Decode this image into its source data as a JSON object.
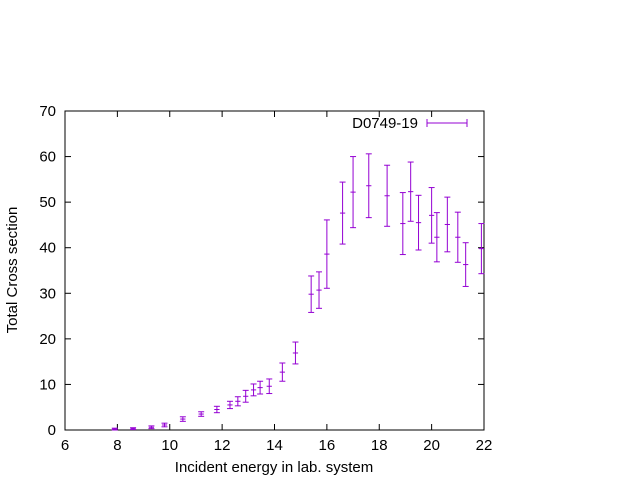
{
  "chart_data": {
    "type": "scatter",
    "title": "",
    "xlabel": "Incident energy in lab. system",
    "ylabel": "Total Cross section",
    "xlim": [
      6,
      22
    ],
    "ylim": [
      0,
      70
    ],
    "xticks": [
      6,
      8,
      10,
      12,
      14,
      16,
      18,
      20,
      22
    ],
    "yticks": [
      0,
      10,
      20,
      30,
      40,
      50,
      60,
      70
    ],
    "grid": false,
    "legend_position": "top-right",
    "series": [
      {
        "name": "D0749-19",
        "color": "#9400d3",
        "marker": "errorbar",
        "points": [
          {
            "x": 7.9,
            "y": 0.2,
            "err": 0.2,
            "xerr": 0.1
          },
          {
            "x": 8.6,
            "y": 0.3,
            "err": 0.2,
            "xerr": 0.1
          },
          {
            "x": 9.3,
            "y": 0.6,
            "err": 0.3,
            "xerr": 0.1
          },
          {
            "x": 9.8,
            "y": 1.1,
            "err": 0.4,
            "xerr": 0.1
          },
          {
            "x": 10.5,
            "y": 2.4,
            "err": 0.5,
            "xerr": 0.1
          },
          {
            "x": 11.2,
            "y": 3.5,
            "err": 0.5,
            "xerr": 0.1
          },
          {
            "x": 11.8,
            "y": 4.5,
            "err": 0.7,
            "xerr": 0.1
          },
          {
            "x": 12.3,
            "y": 5.5,
            "err": 0.8,
            "xerr": 0.1
          },
          {
            "x": 12.6,
            "y": 6.3,
            "err": 1.0,
            "xerr": 0.1
          },
          {
            "x": 12.9,
            "y": 7.4,
            "err": 1.3,
            "xerr": 0.1
          },
          {
            "x": 13.2,
            "y": 8.8,
            "err": 1.3,
            "xerr": 0.1
          },
          {
            "x": 13.45,
            "y": 9.3,
            "err": 1.4,
            "xerr": 0.1
          },
          {
            "x": 13.8,
            "y": 9.6,
            "err": 1.6,
            "xerr": 0.1
          },
          {
            "x": 14.3,
            "y": 12.7,
            "err": 2.0,
            "xerr": 0.1
          },
          {
            "x": 14.8,
            "y": 16.9,
            "err": 2.4,
            "xerr": 0.1
          },
          {
            "x": 15.4,
            "y": 29.8,
            "err": 4.0,
            "xerr": 0.1
          },
          {
            "x": 15.7,
            "y": 30.7,
            "err": 4.0,
            "xerr": 0.1
          },
          {
            "x": 16.0,
            "y": 38.6,
            "err": 7.5,
            "xerr": 0.1
          },
          {
            "x": 16.6,
            "y": 47.6,
            "err": 6.8,
            "xerr": 0.1
          },
          {
            "x": 17.0,
            "y": 52.2,
            "err": 7.8,
            "xerr": 0.1
          },
          {
            "x": 17.6,
            "y": 53.6,
            "err": 7.0,
            "xerr": 0.1
          },
          {
            "x": 18.3,
            "y": 51.4,
            "err": 6.7,
            "xerr": 0.1
          },
          {
            "x": 18.9,
            "y": 45.3,
            "err": 6.8,
            "xerr": 0.1
          },
          {
            "x": 19.2,
            "y": 52.3,
            "err": 6.5,
            "xerr": 0.1
          },
          {
            "x": 19.5,
            "y": 45.5,
            "err": 6.0,
            "xerr": 0.1
          },
          {
            "x": 20.0,
            "y": 47.1,
            "err": 6.1,
            "xerr": 0.1
          },
          {
            "x": 20.2,
            "y": 42.3,
            "err": 5.4,
            "xerr": 0.1
          },
          {
            "x": 20.6,
            "y": 45.1,
            "err": 6.0,
            "xerr": 0.1
          },
          {
            "x": 21.0,
            "y": 42.3,
            "err": 5.5,
            "xerr": 0.1
          },
          {
            "x": 21.3,
            "y": 36.3,
            "err": 4.8,
            "xerr": 0.1
          },
          {
            "x": 21.9,
            "y": 39.8,
            "err": 5.5,
            "xerr": 0.1
          }
        ]
      }
    ]
  }
}
